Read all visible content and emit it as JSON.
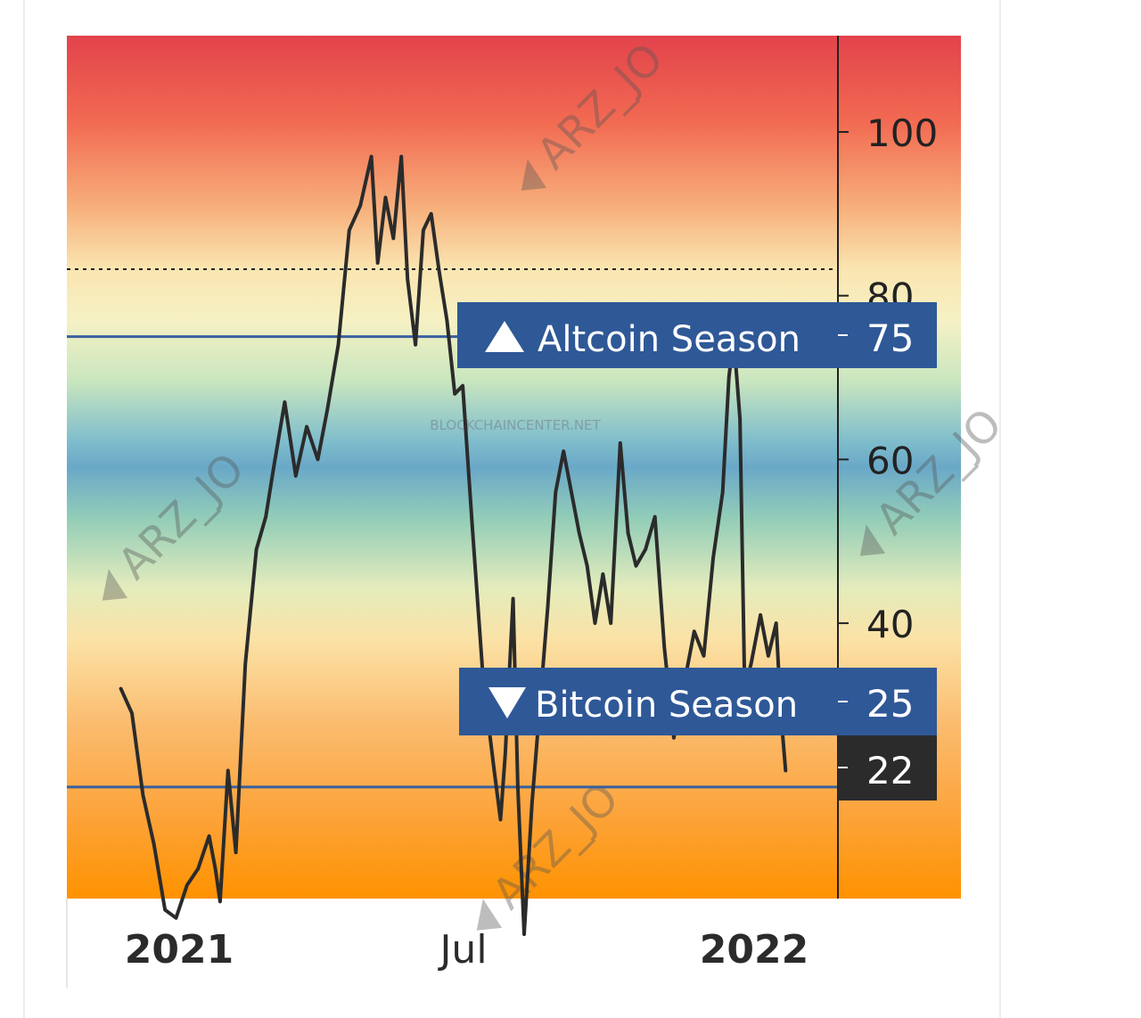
{
  "chart_data": {
    "type": "line",
    "x_tick_labels": [
      "2021",
      "Jul",
      "2022"
    ],
    "y_tick_labels": [
      "100",
      "80",
      "60",
      "40"
    ],
    "ylim": [
      0,
      105
    ],
    "grid": false,
    "legend": "none",
    "series": [
      {
        "points": [
          {
            "x": "2020-11-25",
            "y": 32
          },
          {
            "x": "2020-12-02",
            "y": 29
          },
          {
            "x": "2020-12-09",
            "y": 19
          },
          {
            "x": "2020-12-16",
            "y": 13
          },
          {
            "x": "2020-12-23",
            "y": 5
          },
          {
            "x": "2020-12-30",
            "y": 4
          },
          {
            "x": "2021-01-06",
            "y": 8
          },
          {
            "x": "2021-01-13",
            "y": 10
          },
          {
            "x": "2021-01-20",
            "y": 14
          },
          {
            "x": "2021-01-24",
            "y": 10
          },
          {
            "x": "2021-01-27",
            "y": 6
          },
          {
            "x": "2021-02-01",
            "y": 22
          },
          {
            "x": "2021-02-06",
            "y": 12
          },
          {
            "x": "2021-02-12",
            "y": 35
          },
          {
            "x": "2021-02-19",
            "y": 49
          },
          {
            "x": "2021-02-25",
            "y": 53
          },
          {
            "x": "2021-03-02",
            "y": 59
          },
          {
            "x": "2021-03-09",
            "y": 67
          },
          {
            "x": "2021-03-16",
            "y": 58
          },
          {
            "x": "2021-03-23",
            "y": 64
          },
          {
            "x": "2021-03-30",
            "y": 60
          },
          {
            "x": "2021-04-05",
            "y": 66
          },
          {
            "x": "2021-04-12",
            "y": 74
          },
          {
            "x": "2021-04-19",
            "y": 88
          },
          {
            "x": "2021-04-26",
            "y": 91
          },
          {
            "x": "2021-05-03",
            "y": 97
          },
          {
            "x": "2021-05-07",
            "y": 84
          },
          {
            "x": "2021-05-12",
            "y": 92
          },
          {
            "x": "2021-05-17",
            "y": 87
          },
          {
            "x": "2021-05-22",
            "y": 97
          },
          {
            "x": "2021-05-26",
            "y": 82
          },
          {
            "x": "2021-05-31",
            "y": 74
          },
          {
            "x": "2021-06-05",
            "y": 88
          },
          {
            "x": "2021-06-10",
            "y": 90
          },
          {
            "x": "2021-06-15",
            "y": 83
          },
          {
            "x": "2021-06-20",
            "y": 77
          },
          {
            "x": "2021-06-25",
            "y": 68
          },
          {
            "x": "2021-06-30",
            "y": 69
          },
          {
            "x": "2021-07-06",
            "y": 52
          },
          {
            "x": "2021-07-13",
            "y": 33
          },
          {
            "x": "2021-07-20",
            "y": 22
          },
          {
            "x": "2021-07-24",
            "y": 16
          },
          {
            "x": "2021-07-27",
            "y": 24
          },
          {
            "x": "2021-08-01",
            "y": 43
          },
          {
            "x": "2021-08-04",
            "y": 20
          },
          {
            "x": "2021-08-08",
            "y": 2
          },
          {
            "x": "2021-08-13",
            "y": 18
          },
          {
            "x": "2021-08-18",
            "y": 30
          },
          {
            "x": "2021-08-23",
            "y": 42
          },
          {
            "x": "2021-08-28",
            "y": 56
          },
          {
            "x": "2021-09-02",
            "y": 61
          },
          {
            "x": "2021-09-07",
            "y": 56
          },
          {
            "x": "2021-09-12",
            "y": 51
          },
          {
            "x": "2021-09-17",
            "y": 47
          },
          {
            "x": "2021-09-22",
            "y": 40
          },
          {
            "x": "2021-09-27",
            "y": 46
          },
          {
            "x": "2021-10-02",
            "y": 40
          },
          {
            "x": "2021-10-08",
            "y": 62
          },
          {
            "x": "2021-10-13",
            "y": 51
          },
          {
            "x": "2021-10-18",
            "y": 47
          },
          {
            "x": "2021-10-24",
            "y": 49
          },
          {
            "x": "2021-10-30",
            "y": 53
          },
          {
            "x": "2021-11-05",
            "y": 37
          },
          {
            "x": "2021-11-11",
            "y": 26
          },
          {
            "x": "2021-11-18",
            "y": 33
          },
          {
            "x": "2021-11-24",
            "y": 39
          },
          {
            "x": "2021-11-30",
            "y": 36
          },
          {
            "x": "2021-12-06",
            "y": 48
          },
          {
            "x": "2021-12-12",
            "y": 56
          },
          {
            "x": "2021-12-16",
            "y": 70
          },
          {
            "x": "2021-12-19",
            "y": 75
          },
          {
            "x": "2021-12-23",
            "y": 65
          },
          {
            "x": "2021-12-26",
            "y": 32
          },
          {
            "x": "2021-12-30",
            "y": 35
          },
          {
            "x": "2022-01-05",
            "y": 41
          },
          {
            "x": "2022-01-10",
            "y": 36
          },
          {
            "x": "2022-01-15",
            "y": 40
          },
          {
            "x": "2022-01-18",
            "y": 29
          },
          {
            "x": "2022-01-21",
            "y": 22
          }
        ]
      }
    ],
    "reference_lines": [
      {
        "y": 75,
        "label": "Altcoin Season",
        "marker": "up-triangle",
        "value_label": "75"
      },
      {
        "y": 25,
        "label": "Bitcoin Season",
        "marker": "down-triangle",
        "value_label": "25"
      }
    ],
    "dotted_line": {
      "y": 84
    },
    "current_value_label": "22",
    "colors": {
      "line": "#2b2b2b",
      "reference_line": "#3a5f9e",
      "label_box": "#2f5897",
      "current_box": "#2b2b2b",
      "gradient_top": "#e2434b",
      "gradient_mid": "#6aa8c8",
      "gradient_bottom": "#ff9200"
    }
  },
  "watermarks": [
    "ARZ_JO",
    "BLOCKCHAINCENTER.NET"
  ]
}
